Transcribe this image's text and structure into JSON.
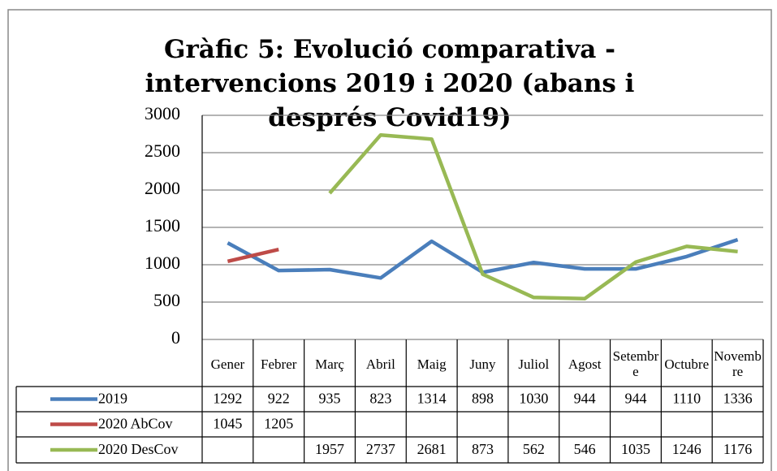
{
  "chart_data": {
    "type": "line",
    "title": "Gràfic 5: Evolució comparativa - intervencions 2019 i 2020 (abans i després Covid19)",
    "categories": [
      "Gener",
      "Febrer",
      "Març",
      "Abril",
      "Maig",
      "Juny",
      "Juliol",
      "Agost",
      "Setembre",
      "Octubre",
      "Novembre"
    ],
    "series": [
      {
        "name": "2019",
        "color": "#4a7ebb",
        "values": [
          1292,
          922,
          935,
          823,
          1314,
          898,
          1030,
          944,
          944,
          1110,
          1336
        ]
      },
      {
        "name": "2020 AbCov",
        "color": "#be4b48",
        "values": [
          1045,
          1205,
          null,
          null,
          null,
          null,
          null,
          null,
          null,
          null,
          null
        ]
      },
      {
        "name": "2020 DesCov",
        "color": "#98b954",
        "values": [
          null,
          null,
          1957,
          2737,
          2681,
          873,
          562,
          546,
          1035,
          1246,
          1176
        ]
      }
    ],
    "ylim": [
      0,
      3000
    ],
    "yticks": [
      0,
      500,
      1000,
      1500,
      2000,
      2500,
      3000
    ],
    "grid": true,
    "data_table": true
  }
}
